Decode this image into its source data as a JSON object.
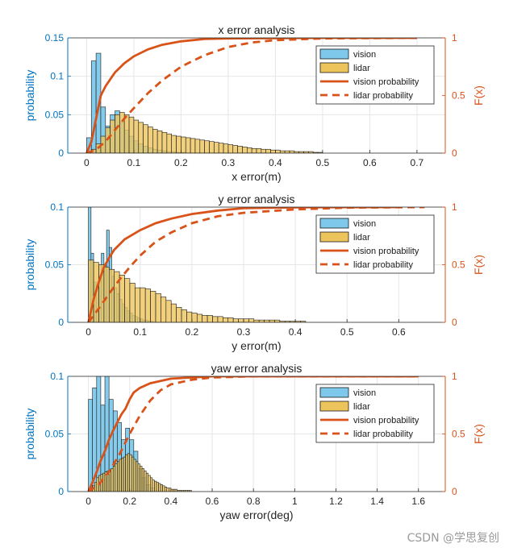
{
  "colors": {
    "vision_fill": "#7EC8EB",
    "lidar_fill": "#EDC45C",
    "cdf": "#D95319",
    "left_axis": "#0072BD",
    "grid": "#e6e6e6",
    "frame": "#262626",
    "hist_edge": "#1a1a1a"
  },
  "watermark": "CSDN @学思复创",
  "chart_data": [
    {
      "type": "bar",
      "title": "x error analysis",
      "xlabel": "x error(m)",
      "ylabel": "probability",
      "ylabel_right": "F(x)",
      "xlim": [
        -0.04,
        0.76
      ],
      "ylim": [
        0,
        0.15
      ],
      "ylim_right": [
        0,
        1
      ],
      "xticks": [
        "0",
        "0.1",
        "0.2",
        "0.3",
        "0.4",
        "0.5",
        "0.6",
        "0.7"
      ],
      "xtick_values": [
        0,
        0.1,
        0.2,
        0.3,
        0.4,
        0.5,
        0.6,
        0.7
      ],
      "yticks": [
        "0",
        "0.05",
        "0.1",
        "0.15"
      ],
      "ytick_values": [
        0,
        0.05,
        0.1,
        0.15
      ],
      "yticks_right": [
        "0",
        "0.5",
        "1"
      ],
      "grid": true,
      "legend_position": "top-right",
      "legend": [
        "vision",
        "lidar",
        "vision probability",
        "lidar probability"
      ],
      "series": [
        {
          "name": "vision",
          "bin_width": 0.01,
          "x_start": 0,
          "values": [
            0.02,
            0.12,
            0.13,
            0.06,
            0.035,
            0.05,
            0.055,
            0.04,
            0.03,
            0.022,
            0.016,
            0.012,
            0.009,
            0.007,
            0.005,
            0.004,
            0.003,
            0.002,
            0.002,
            0.001,
            0.001
          ]
        },
        {
          "name": "lidar",
          "bin_width": 0.01,
          "x_start": 0,
          "values": [
            0.001,
            0.005,
            0.012,
            0.022,
            0.033,
            0.043,
            0.05,
            0.053,
            0.05,
            0.047,
            0.043,
            0.04,
            0.037,
            0.034,
            0.031,
            0.029,
            0.027,
            0.025,
            0.023,
            0.022,
            0.021,
            0.02,
            0.019,
            0.018,
            0.017,
            0.016,
            0.015,
            0.014,
            0.013,
            0.012,
            0.011,
            0.01,
            0.009,
            0.008,
            0.007,
            0.006,
            0.006,
            0.005,
            0.005,
            0.004,
            0.004,
            0.003,
            0.003,
            0.003,
            0.002,
            0.002,
            0.002,
            0.002,
            0.001,
            0.001
          ]
        },
        {
          "name": "vision probability",
          "style": "solid",
          "x": [
            0,
            0.01,
            0.02,
            0.03,
            0.04,
            0.05,
            0.06,
            0.08,
            0.1,
            0.13,
            0.16,
            0.2,
            0.25,
            0.3,
            0.4,
            0.5,
            0.7
          ],
          "y": [
            0,
            0.1,
            0.3,
            0.5,
            0.58,
            0.64,
            0.7,
            0.78,
            0.84,
            0.9,
            0.94,
            0.97,
            0.99,
            0.995,
            0.998,
            1,
            1
          ]
        },
        {
          "name": "lidar probability",
          "style": "dashed",
          "x": [
            0,
            0.02,
            0.04,
            0.06,
            0.08,
            0.1,
            0.13,
            0.16,
            0.2,
            0.25,
            0.3,
            0.35,
            0.4,
            0.5,
            0.7
          ],
          "y": [
            0,
            0.03,
            0.1,
            0.2,
            0.3,
            0.39,
            0.52,
            0.63,
            0.75,
            0.85,
            0.92,
            0.96,
            0.98,
            0.995,
            1
          ]
        }
      ]
    },
    {
      "type": "bar",
      "title": "y error analysis",
      "xlabel": "y error(m)",
      "ylabel": "probability",
      "ylabel_right": "F(x)",
      "xlim": [
        -0.04,
        0.69
      ],
      "ylim": [
        0,
        0.1
      ],
      "ylim_right": [
        0,
        1
      ],
      "xticks": [
        "0",
        "0.1",
        "0.2",
        "0.3",
        "0.4",
        "0.5",
        "0.6"
      ],
      "xtick_values": [
        0,
        0.1,
        0.2,
        0.3,
        0.4,
        0.5,
        0.6
      ],
      "yticks": [
        "0",
        "0.05",
        "0.1"
      ],
      "ytick_values": [
        0,
        0.05,
        0.1
      ],
      "yticks_right": [
        "0",
        "0.5",
        "1"
      ],
      "grid": true,
      "legend_position": "top-right",
      "legend": [
        "vision",
        "lidar",
        "vision probability",
        "lidar probability"
      ],
      "series": [
        {
          "name": "vision",
          "bin_width": 0.005,
          "x_start": 0,
          "values": [
            0.1,
            0.06,
            0.035,
            0.03,
            0.04,
            0.06,
            0.05,
            0.08,
            0.065,
            0.04,
            0.03,
            0.025,
            0.02,
            0.016,
            0.013,
            0.01,
            0.008,
            0.006,
            0.005,
            0.004,
            0.003,
            0.002,
            0.002,
            0.001,
            0.001
          ]
        },
        {
          "name": "lidar",
          "bin_width": 0.01,
          "x_start": 0,
          "values": [
            0.054,
            0.052,
            0.05,
            0.048,
            0.046,
            0.044,
            0.041,
            0.038,
            0.034,
            0.03,
            0.03,
            0.029,
            0.027,
            0.025,
            0.022,
            0.019,
            0.016,
            0.013,
            0.011,
            0.009,
            0.008,
            0.007,
            0.006,
            0.006,
            0.005,
            0.005,
            0.004,
            0.004,
            0.003,
            0.003,
            0.003,
            0.003,
            0.002,
            0.002,
            0.002,
            0.002,
            0.002,
            0.001,
            0.001,
            0.001,
            0.001,
            0.001
          ]
        },
        {
          "name": "vision probability",
          "style": "solid",
          "x": [
            0,
            0.01,
            0.02,
            0.03,
            0.04,
            0.05,
            0.07,
            0.1,
            0.13,
            0.16,
            0.2,
            0.25,
            0.3,
            0.4,
            0.6
          ],
          "y": [
            0,
            0.2,
            0.35,
            0.48,
            0.56,
            0.63,
            0.72,
            0.8,
            0.86,
            0.9,
            0.94,
            0.97,
            0.99,
            0.998,
            1
          ]
        },
        {
          "name": "lidar probability",
          "style": "dashed",
          "x": [
            0,
            0.01,
            0.02,
            0.04,
            0.06,
            0.08,
            0.1,
            0.13,
            0.16,
            0.2,
            0.25,
            0.3,
            0.4,
            0.5,
            0.65
          ],
          "y": [
            0,
            0.06,
            0.12,
            0.25,
            0.37,
            0.48,
            0.58,
            0.7,
            0.78,
            0.86,
            0.92,
            0.95,
            0.98,
            0.995,
            1
          ]
        }
      ]
    },
    {
      "type": "bar",
      "title": "yaw error analysis",
      "xlabel": "yaw error(deg)",
      "ylabel": "probability",
      "ylabel_right": "F(x)",
      "xlim": [
        -0.1,
        1.73
      ],
      "ylim": [
        0,
        0.1
      ],
      "ylim_right": [
        0,
        1
      ],
      "xticks": [
        "0",
        "0.2",
        "0.4",
        "0.6",
        "0.8",
        "1",
        "1.2",
        "1.4",
        "1.6"
      ],
      "xtick_values": [
        0,
        0.2,
        0.4,
        0.6,
        0.8,
        1,
        1.2,
        1.4,
        1.6
      ],
      "yticks": [
        "0",
        "0.05",
        "0.1"
      ],
      "ytick_values": [
        0,
        0.05,
        0.1
      ],
      "yticks_right": [
        "0",
        "0.5",
        "1"
      ],
      "grid": true,
      "legend_position": "top-right",
      "legend": [
        "vision",
        "lidar",
        "vision probability",
        "lidar probability"
      ],
      "series": [
        {
          "name": "vision",
          "bin_width": 0.02,
          "x_start": 0,
          "values": [
            0.08,
            0.09,
            0.1,
            0.075,
            0.1,
            0.08,
            0.07,
            0.06,
            0.045,
            0.055,
            0.045,
            0.035,
            0.02,
            0.012,
            0.006,
            0.003
          ]
        },
        {
          "name": "lidar",
          "bin_width": 0.01,
          "x_start": 0,
          "values": [
            0.001,
            0.003,
            0.005,
            0.008,
            0.012,
            0.014,
            0.015,
            0.016,
            0.017,
            0.018,
            0.019,
            0.02,
            0.022,
            0.024,
            0.026,
            0.028,
            0.029,
            0.03,
            0.032,
            0.033,
            0.032,
            0.03,
            0.028,
            0.026,
            0.024,
            0.022,
            0.02,
            0.018,
            0.016,
            0.014,
            0.012,
            0.01,
            0.009,
            0.008,
            0.007,
            0.006,
            0.005,
            0.004,
            0.003,
            0.003,
            0.002,
            0.002,
            0.002,
            0.001,
            0.001,
            0.001,
            0.001,
            0.001,
            0.001,
            0.001
          ]
        },
        {
          "name": "vision probability",
          "style": "solid",
          "x": [
            0,
            0.02,
            0.04,
            0.06,
            0.08,
            0.1,
            0.12,
            0.14,
            0.16,
            0.18,
            0.2,
            0.22,
            0.25,
            0.3,
            0.4,
            0.6,
            1.6
          ],
          "y": [
            0,
            0.08,
            0.17,
            0.27,
            0.35,
            0.45,
            0.53,
            0.6,
            0.67,
            0.72,
            0.8,
            0.86,
            0.9,
            0.94,
            0.98,
            1,
            1
          ]
        },
        {
          "name": "lidar probability",
          "style": "dashed",
          "x": [
            0,
            0.05,
            0.1,
            0.15,
            0.2,
            0.25,
            0.3,
            0.35,
            0.4,
            0.5,
            0.6,
            0.8,
            1.6
          ],
          "y": [
            0,
            0.06,
            0.17,
            0.32,
            0.5,
            0.66,
            0.79,
            0.88,
            0.93,
            0.97,
            0.99,
            1,
            1
          ]
        }
      ]
    }
  ]
}
